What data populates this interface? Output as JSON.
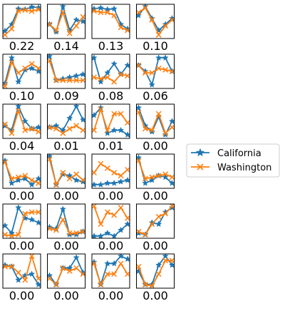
{
  "colors": {
    "california": "#1f77b4",
    "washington": "#ff7f0e",
    "axes": "#000000",
    "legend_border": "#cccccc"
  },
  "legend": {
    "placement": "center-right",
    "entries": [
      "California",
      "Washington"
    ]
  },
  "chart_data": {
    "type": "line",
    "layout": {
      "rows": 6,
      "cols": 4
    },
    "series_names": [
      "California",
      "Washington"
    ],
    "ylim": [
      0,
      1
    ],
    "panels": [
      {
        "score": "0.22",
        "x": [
          0,
          1,
          2,
          3,
          4,
          5
        ],
        "series": [
          {
            "name": "California",
            "values": [
              0.18,
              0.4,
              0.92,
              0.9,
              0.98,
              0.96
            ]
          },
          {
            "name": "Washington",
            "values": [
              0.05,
              0.25,
              0.85,
              0.88,
              0.84,
              0.9
            ]
          }
        ]
      },
      {
        "score": "0.14",
        "x": [
          0,
          1,
          2,
          3,
          4,
          5
        ],
        "series": [
          {
            "name": "California",
            "values": [
              0.4,
              0.15,
              1.0,
              0.2,
              0.55,
              0.5
            ]
          },
          {
            "name": "Washington",
            "values": [
              0.4,
              0.2,
              0.8,
              0.1,
              0.35,
              0.65
            ]
          }
        ]
      },
      {
        "score": "0.13",
        "x": [
          0,
          1,
          2,
          3,
          4,
          5
        ],
        "series": [
          {
            "name": "California",
            "values": [
              0.92,
              0.95,
              0.9,
              0.92,
              0.4,
              0.25
            ]
          },
          {
            "name": "Washington",
            "values": [
              0.85,
              0.8,
              0.8,
              0.7,
              0.3,
              0.2
            ]
          }
        ]
      },
      {
        "score": "0.10",
        "x": [
          0,
          1,
          2,
          3,
          4,
          5
        ],
        "series": [
          {
            "name": "California",
            "values": [
              0.7,
              1.0,
              0.6,
              0.2,
              0.4,
              0.6
            ]
          },
          {
            "name": "Washington",
            "values": [
              0.8,
              0.95,
              0.55,
              0.05,
              0.35,
              0.55
            ]
          }
        ]
      },
      {
        "score": "0.10",
        "x": [
          0,
          1,
          2,
          3,
          4,
          5
        ],
        "series": [
          {
            "name": "California",
            "values": [
              0.1,
              0.95,
              0.15,
              0.55,
              0.6,
              0.5
            ]
          },
          {
            "name": "Washington",
            "values": [
              0.0,
              0.8,
              0.45,
              0.6,
              0.75,
              0.6
            ]
          }
        ]
      },
      {
        "score": "0.09",
        "x": [
          0,
          1,
          2,
          3,
          4,
          5
        ],
        "series": [
          {
            "name": "California",
            "values": [
              1.0,
              0.2,
              0.25,
              0.3,
              0.35,
              0.4
            ]
          },
          {
            "name": "Washington",
            "values": [
              0.85,
              0.2,
              0.2,
              0.2,
              0.2,
              0.2
            ]
          }
        ]
      },
      {
        "score": "0.08",
        "x": [
          0,
          1,
          2,
          3,
          4,
          5
        ],
        "series": [
          {
            "name": "California",
            "values": [
              0.95,
              0.15,
              0.45,
              0.75,
              0.4,
              0.7
            ]
          },
          {
            "name": "Washington",
            "values": [
              0.3,
              0.25,
              0.3,
              0.15,
              0.4,
              0.35
            ]
          }
        ]
      },
      {
        "score": "0.06",
        "x": [
          0,
          1,
          2,
          3,
          4,
          5
        ],
        "series": [
          {
            "name": "California",
            "values": [
              0.7,
              0.5,
              0.05,
              0.95,
              0.95,
              0.5
            ]
          },
          {
            "name": "Washington",
            "values": [
              0.7,
              0.45,
              0.45,
              0.6,
              0.55,
              0.5
            ]
          }
        ]
      },
      {
        "score": "0.04",
        "x": [
          0,
          1,
          2,
          3,
          4,
          5
        ],
        "series": [
          {
            "name": "California",
            "values": [
              0.35,
              0.2,
              1.0,
              0.5,
              0.25,
              0.3
            ]
          },
          {
            "name": "Washington",
            "values": [
              0.4,
              0.1,
              0.85,
              0.2,
              0.25,
              0.15
            ]
          }
        ]
      },
      {
        "score": "0.01",
        "x": [
          0,
          1,
          2,
          3,
          4,
          5
        ],
        "series": [
          {
            "name": "California",
            "values": [
              0.3,
              0.35,
              0.2,
              0.6,
              1.0,
              0.55
            ]
          },
          {
            "name": "Washington",
            "values": [
              0.3,
              0.25,
              0.1,
              0.25,
              0.35,
              0.2
            ]
          }
        ]
      },
      {
        "score": "0.01",
        "x": [
          0,
          1,
          2,
          3,
          4,
          5
        ],
        "series": [
          {
            "name": "California",
            "values": [
              0.7,
              0.95,
              0.1,
              0.2,
              0.2,
              0.05
            ]
          },
          {
            "name": "Washington",
            "values": [
              0.2,
              0.9,
              0.2,
              0.75,
              0.75,
              0.45
            ]
          }
        ]
      },
      {
        "score": "0.00",
        "x": [
          0,
          1,
          2,
          3,
          4,
          5
        ],
        "series": [
          {
            "name": "California",
            "values": [
              0.95,
              0.35,
              0.15,
              0.65,
              0.05,
              0.5
            ]
          },
          {
            "name": "Washington",
            "values": [
              0.8,
              0.25,
              0.2,
              0.75,
              0.1,
              0.3
            ]
          }
        ]
      },
      {
        "score": "0.00",
        "x": [
          0,
          1,
          2,
          3,
          4,
          5
        ],
        "series": [
          {
            "name": "California",
            "values": [
              0.85,
              0.1,
              0.2,
              0.25,
              0.05,
              0.25
            ]
          },
          {
            "name": "Washington",
            "values": [
              0.8,
              0.25,
              0.3,
              0.35,
              0.2,
              0.1
            ]
          }
        ]
      },
      {
        "score": "0.00",
        "x": [
          0,
          1,
          2,
          3,
          4,
          5
        ],
        "series": [
          {
            "name": "California",
            "values": [
              1.0,
              0.05,
              0.4,
              0.35,
              0.2,
              0.15
            ]
          },
          {
            "name": "Washington",
            "values": [
              0.9,
              0.05,
              0.45,
              0.25,
              0.4,
              0.2
            ]
          }
        ]
      },
      {
        "score": "0.00",
        "x": [
          0,
          1,
          2,
          3,
          4,
          5
        ],
        "series": [
          {
            "name": "California",
            "values": [
              0.05,
              0.05,
              0.1,
              0.1,
              0.15,
              0.2
            ]
          },
          {
            "name": "Washington",
            "values": [
              0.45,
              0.75,
              0.6,
              0.45,
              0.35,
              0.55
            ]
          }
        ]
      },
      {
        "score": "0.00",
        "x": [
          0,
          1,
          2,
          3,
          4,
          5
        ],
        "series": [
          {
            "name": "California",
            "values": [
              0.95,
              0.1,
              0.2,
              0.35,
              0.3,
              0.1
            ]
          },
          {
            "name": "Washington",
            "values": [
              0.85,
              0.25,
              0.3,
              0.35,
              0.4,
              0.3
            ]
          }
        ]
      },
      {
        "score": "0.00",
        "x": [
          0,
          1,
          2,
          3,
          4,
          5
        ],
        "series": [
          {
            "name": "California",
            "values": [
              0.35,
              0.1,
              0.95,
              0.6,
              0.55,
              0.45
            ]
          },
          {
            "name": "Washington",
            "values": [
              0.05,
              0.0,
              0.05,
              0.75,
              0.8,
              0.8
            ]
          }
        ]
      },
      {
        "score": "0.00",
        "x": [
          0,
          1,
          2,
          3,
          4,
          5
        ],
        "series": [
          {
            "name": "California",
            "values": [
              0.3,
              0.25,
              0.9,
              0.05,
              0.05,
              0.15
            ]
          },
          {
            "name": "Washington",
            "values": [
              0.25,
              0.2,
              0.55,
              0.1,
              0.1,
              0.15
            ]
          }
        ]
      },
      {
        "score": "0.00",
        "x": [
          0,
          1,
          2,
          3,
          4,
          5
        ],
        "series": [
          {
            "name": "California",
            "values": [
              0.0,
              0.0,
              0.1,
              0.0,
              0.2,
              0.4
            ]
          },
          {
            "name": "Washington",
            "values": [
              1.0,
              0.4,
              0.8,
              0.7,
              0.95,
              0.6
            ]
          }
        ]
      },
      {
        "score": "0.00",
        "x": [
          0,
          1,
          2,
          3,
          4,
          5
        ],
        "series": [
          {
            "name": "California",
            "values": [
              0.1,
              0.05,
              0.45,
              0.4,
              0.8,
              0.95
            ]
          },
          {
            "name": "Washington",
            "values": [
              0.15,
              0.05,
              0.4,
              0.65,
              0.75,
              1.0
            ]
          }
        ]
      },
      {
        "score": "0.00",
        "x": [
          0,
          1,
          2,
          3,
          4,
          5
        ],
        "series": [
          {
            "name": "California",
            "values": [
              0.7,
              0.65,
              0.2,
              0.35,
              0.4,
              0.05
            ]
          },
          {
            "name": "Washington",
            "values": [
              0.65,
              0.65,
              0.45,
              0.2,
              1.0,
              0.25
            ]
          }
        ]
      },
      {
        "score": "0.00",
        "x": [
          0,
          1,
          2,
          3,
          4,
          5
        ],
        "series": [
          {
            "name": "California",
            "values": [
              0.35,
              0.05,
              0.6,
              0.6,
              0.95,
              0.45
            ]
          },
          {
            "name": "Washington",
            "values": [
              0.25,
              0.05,
              0.6,
              0.5,
              0.6,
              0.4
            ]
          }
        ]
      },
      {
        "score": "0.00",
        "x": [
          0,
          1,
          2,
          3,
          4,
          5
        ],
        "series": [
          {
            "name": "California",
            "values": [
              0.8,
              0.05,
              0.75,
              0.75,
              1.0,
              0.9
            ]
          },
          {
            "name": "Washington",
            "values": [
              0.75,
              0.05,
              0.4,
              0.4,
              0.75,
              0.4
            ]
          }
        ]
      },
      {
        "score": "0.00",
        "x": [
          0,
          1,
          2,
          3,
          4,
          5
        ],
        "series": [
          {
            "name": "California",
            "values": [
              0.5,
              0.05,
              0.05,
              0.7,
              1.0,
              0.7
            ]
          },
          {
            "name": "Washington",
            "values": [
              0.65,
              0.05,
              0.0,
              0.4,
              0.85,
              0.85
            ]
          }
        ]
      }
    ]
  }
}
